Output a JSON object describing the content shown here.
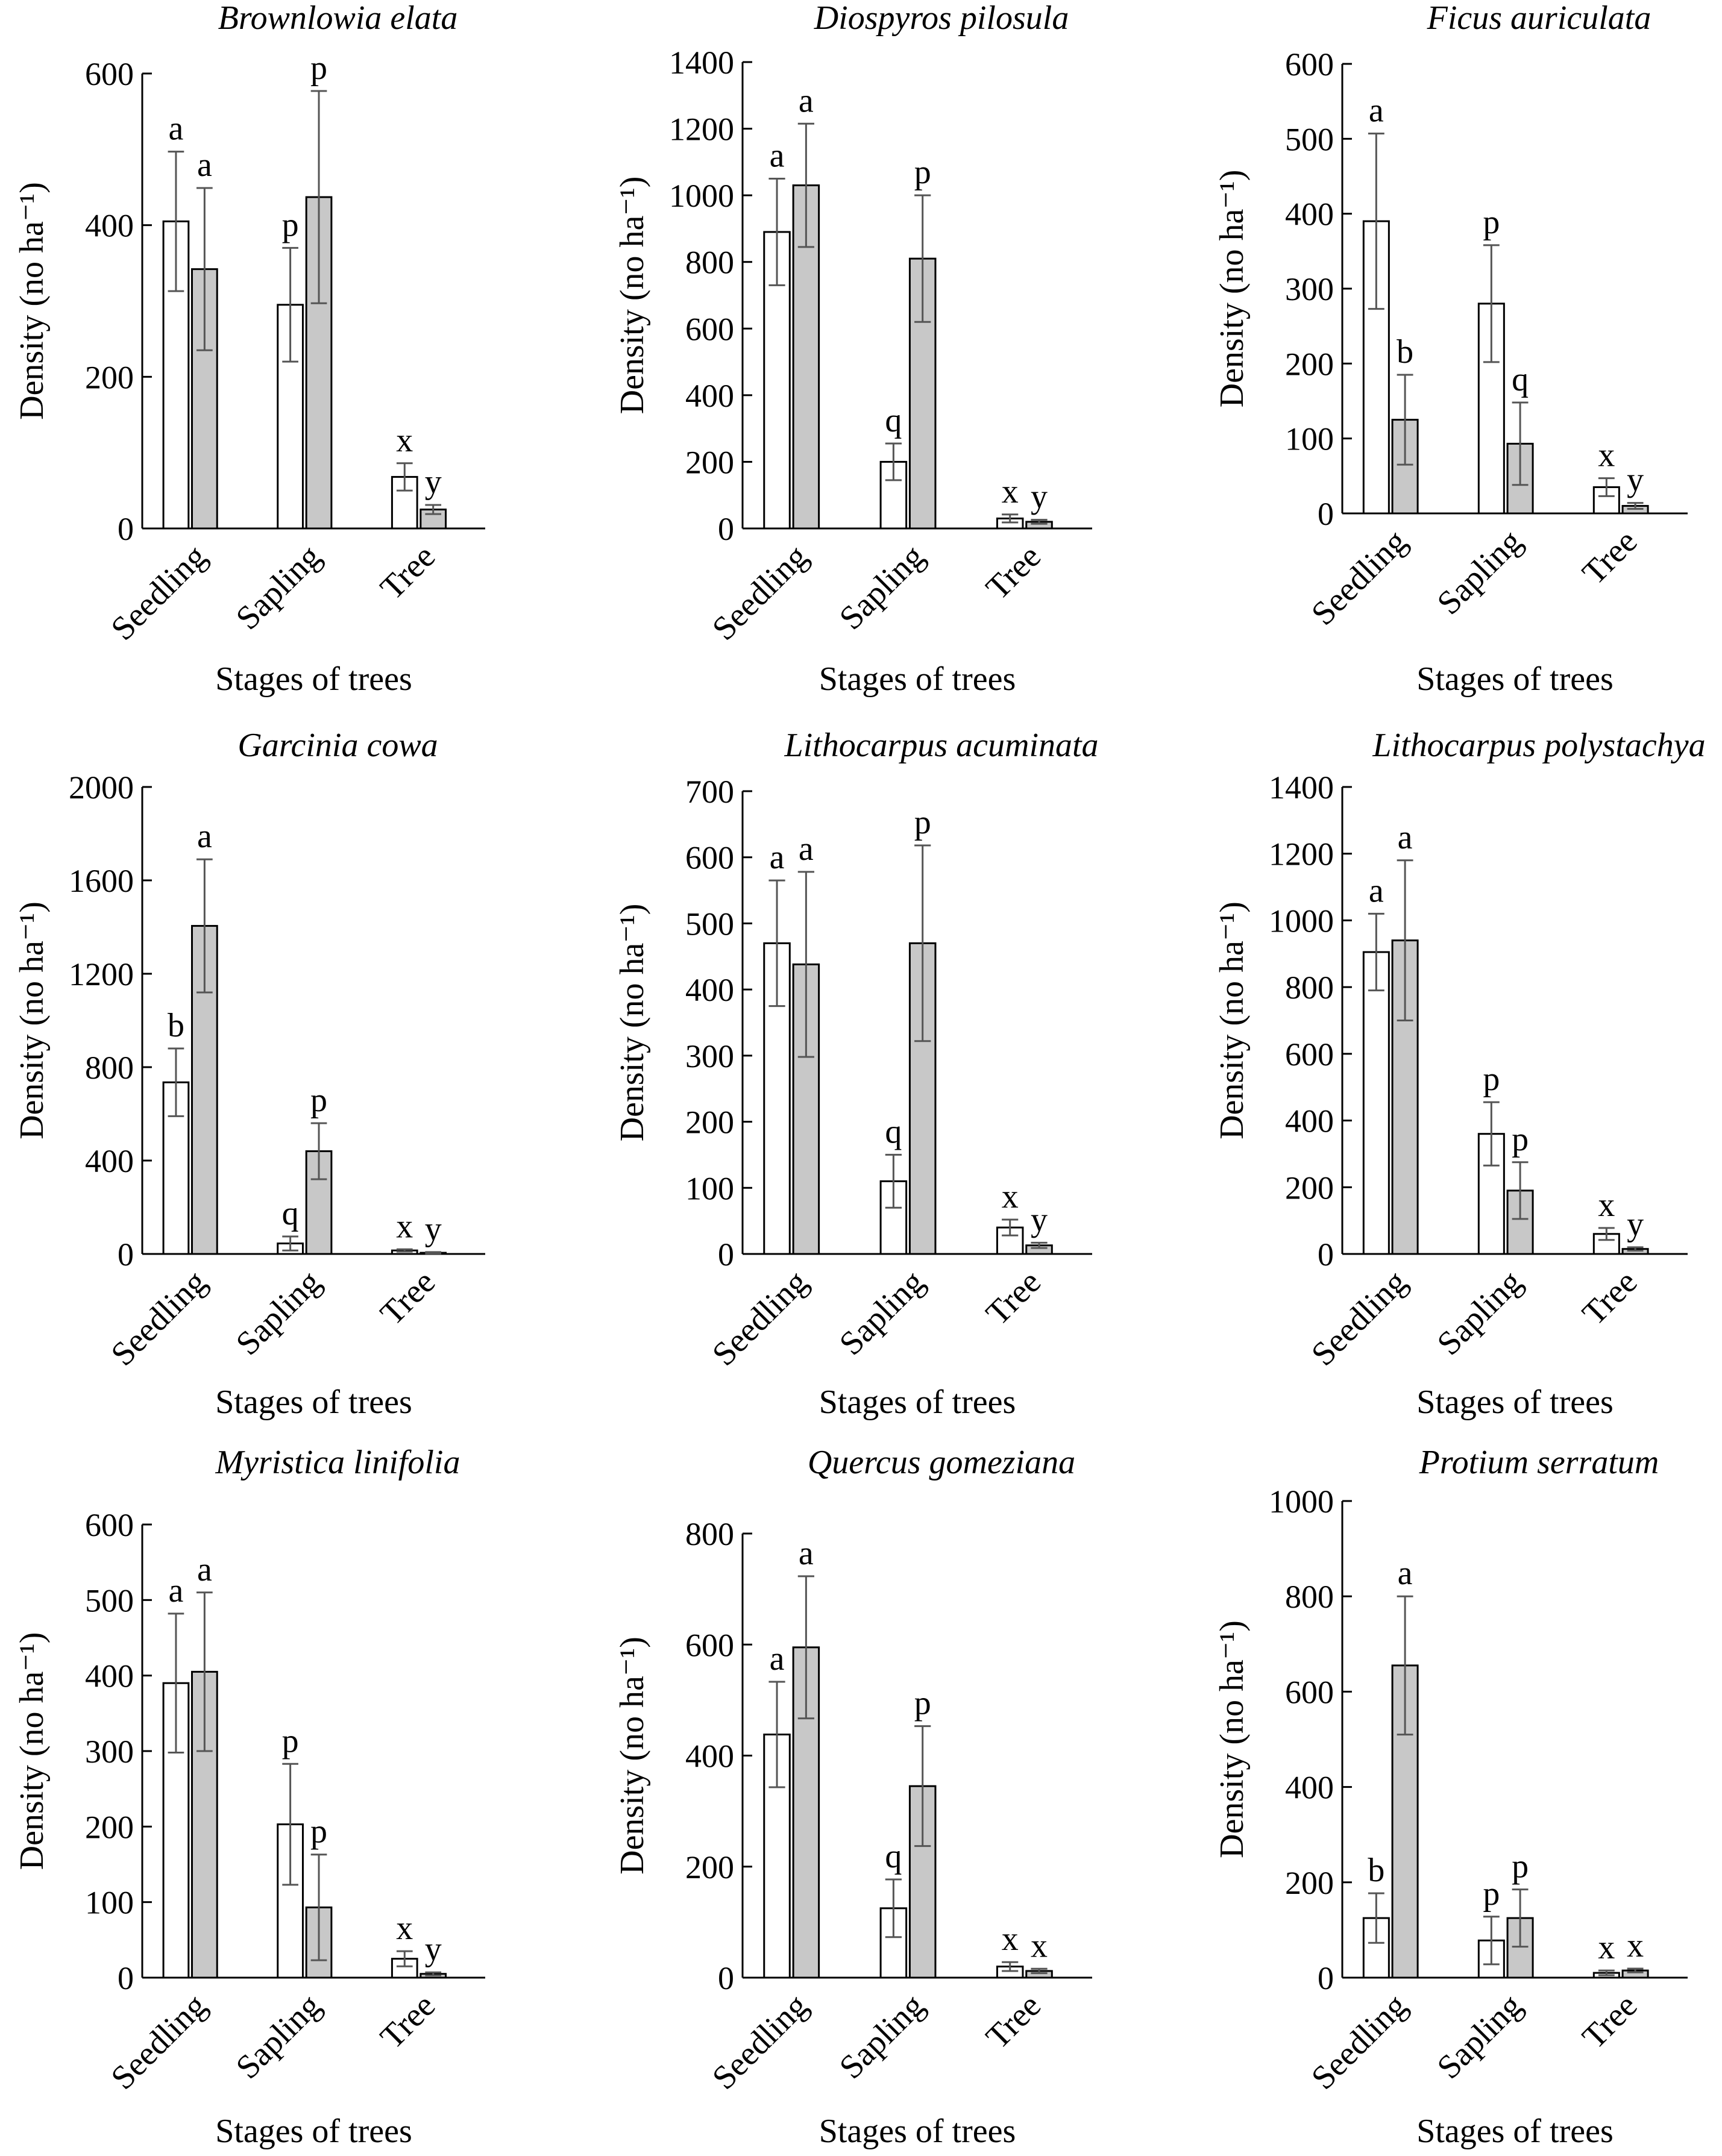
{
  "chart_data": [
    {
      "type": "bar",
      "title": "Brownlowia elata",
      "xlabel": "Stages of trees",
      "ylabel": "Density (no ha⁻¹)",
      "categories": [
        "Seedling",
        "Sapling",
        "Tree"
      ],
      "ylim": [
        0,
        600
      ],
      "yticks": [
        0,
        200,
        400,
        600
      ],
      "series": [
        {
          "fill": "#ffffff",
          "values": [
            405,
            295,
            68
          ],
          "errors": [
            92,
            75,
            18
          ],
          "letters": [
            "a",
            "p",
            "x"
          ]
        },
        {
          "fill": "#c8c8c8",
          "values": [
            342,
            437,
            25
          ],
          "errors": [
            107,
            140,
            6
          ],
          "letters": [
            "a",
            "p",
            "y"
          ]
        }
      ]
    },
    {
      "type": "bar",
      "title": "Diospyros pilosula",
      "xlabel": "Stages of trees",
      "ylabel": "Density (no ha⁻¹)",
      "categories": [
        "Seedling",
        "Sapling",
        "Tree"
      ],
      "ylim": [
        0,
        1400
      ],
      "yticks": [
        0,
        200,
        400,
        600,
        800,
        1000,
        1200,
        1400
      ],
      "series": [
        {
          "fill": "#ffffff",
          "values": [
            890,
            200,
            30
          ],
          "errors": [
            160,
            55,
            12
          ],
          "letters": [
            "a",
            "q",
            "x"
          ]
        },
        {
          "fill": "#c8c8c8",
          "values": [
            1030,
            810,
            20
          ],
          "errors": [
            185,
            190,
            6
          ],
          "letters": [
            "a",
            "p",
            "y"
          ]
        }
      ]
    },
    {
      "type": "bar",
      "title": "Ficus auriculata",
      "xlabel": "Stages of trees",
      "ylabel": "Density (no ha⁻¹)",
      "categories": [
        "Seedling",
        "Sapling",
        "Tree"
      ],
      "ylim": [
        0,
        600
      ],
      "yticks": [
        0,
        100,
        200,
        300,
        400,
        500,
        600
      ],
      "series": [
        {
          "fill": "#ffffff",
          "values": [
            390,
            280,
            35
          ],
          "errors": [
            117,
            78,
            12
          ],
          "letters": [
            "a",
            "p",
            "x"
          ]
        },
        {
          "fill": "#c8c8c8",
          "values": [
            125,
            93,
            10
          ],
          "errors": [
            60,
            55,
            4
          ],
          "letters": [
            "b",
            "q",
            "y"
          ]
        }
      ]
    },
    {
      "type": "bar",
      "title": "Garcinia cowa",
      "xlabel": "Stages of trees",
      "ylabel": "Density (no ha⁻¹)",
      "categories": [
        "Seedling",
        "Sapling",
        "Tree"
      ],
      "ylim": [
        0,
        2000
      ],
      "yticks": [
        0,
        400,
        800,
        1200,
        1600,
        2000
      ],
      "series": [
        {
          "fill": "#ffffff",
          "values": [
            735,
            45,
            15
          ],
          "errors": [
            145,
            30,
            5
          ],
          "letters": [
            "b",
            "q",
            "x"
          ]
        },
        {
          "fill": "#c8c8c8",
          "values": [
            1405,
            440,
            5
          ],
          "errors": [
            285,
            120,
            3
          ],
          "letters": [
            "a",
            "p",
            "y"
          ]
        }
      ]
    },
    {
      "type": "bar",
      "title": "Lithocarpus acuminata",
      "xlabel": "Stages of trees",
      "ylabel": "Density (no ha⁻¹)",
      "categories": [
        "Seedling",
        "Sapling",
        "Tree"
      ],
      "ylim": [
        0,
        700
      ],
      "yticks": [
        0,
        100,
        200,
        300,
        400,
        500,
        600,
        700
      ],
      "series": [
        {
          "fill": "#ffffff",
          "values": [
            470,
            110,
            40
          ],
          "errors": [
            95,
            40,
            12
          ],
          "letters": [
            "a",
            "q",
            "x"
          ]
        },
        {
          "fill": "#c8c8c8",
          "values": [
            438,
            470,
            13
          ],
          "errors": [
            140,
            148,
            4
          ],
          "letters": [
            "a",
            "p",
            "y"
          ]
        }
      ]
    },
    {
      "type": "bar",
      "title": "Lithocarpus polystachya",
      "xlabel": "Stages of trees",
      "ylabel": "Density (no ha⁻¹)",
      "categories": [
        "Seedling",
        "Sapling",
        "Tree"
      ],
      "ylim": [
        0,
        1400
      ],
      "yticks": [
        0,
        200,
        400,
        600,
        800,
        1000,
        1200,
        1400
      ],
      "series": [
        {
          "fill": "#ffffff",
          "values": [
            905,
            360,
            60
          ],
          "errors": [
            115,
            95,
            18
          ],
          "letters": [
            "a",
            "p",
            "x"
          ]
        },
        {
          "fill": "#c8c8c8",
          "values": [
            940,
            190,
            15
          ],
          "errors": [
            240,
            85,
            5
          ],
          "letters": [
            "a",
            "p",
            "y"
          ]
        }
      ]
    },
    {
      "type": "bar",
      "title": "Myristica linifolia",
      "xlabel": "Stages of trees",
      "ylabel": "Density (no ha⁻¹)",
      "categories": [
        "Seedling",
        "Sapling",
        "Tree"
      ],
      "ylim": [
        0,
        600
      ],
      "yticks": [
        0,
        100,
        200,
        300,
        400,
        500,
        600
      ],
      "series": [
        {
          "fill": "#ffffff",
          "values": [
            390,
            203,
            25
          ],
          "errors": [
            92,
            80,
            10
          ],
          "letters": [
            "a",
            "p",
            "x"
          ]
        },
        {
          "fill": "#c8c8c8",
          "values": [
            405,
            93,
            5
          ],
          "errors": [
            105,
            70,
            2
          ],
          "letters": [
            "a",
            "p",
            "y"
          ]
        }
      ]
    },
    {
      "type": "bar",
      "title": "Quercus gomeziana",
      "xlabel": "Stages of trees",
      "ylabel": "Density (no ha⁻¹)",
      "categories": [
        "Seedling",
        "Sapling",
        "Tree"
      ],
      "ylim": [
        0,
        800
      ],
      "yticks": [
        0,
        200,
        400,
        600,
        800
      ],
      "series": [
        {
          "fill": "#ffffff",
          "values": [
            438,
            125,
            20
          ],
          "errors": [
            95,
            52,
            8
          ],
          "letters": [
            "a",
            "q",
            "x"
          ]
        },
        {
          "fill": "#c8c8c8",
          "values": [
            595,
            345,
            12
          ],
          "errors": [
            128,
            108,
            4
          ],
          "letters": [
            "a",
            "p",
            "x"
          ]
        }
      ]
    },
    {
      "type": "bar",
      "title": "Protium serratum",
      "xlabel": "Stages of trees",
      "ylabel": "Density (no ha⁻¹)",
      "categories": [
        "Seedling",
        "Sapling",
        "Tree"
      ],
      "ylim": [
        0,
        1000
      ],
      "yticks": [
        0,
        200,
        400,
        600,
        800,
        1000
      ],
      "series": [
        {
          "fill": "#ffffff",
          "values": [
            125,
            78,
            10
          ],
          "errors": [
            52,
            50,
            5
          ],
          "letters": [
            "b",
            "p",
            "x"
          ]
        },
        {
          "fill": "#c8c8c8",
          "values": [
            655,
            125,
            15
          ],
          "errors": [
            145,
            60,
            4
          ],
          "letters": [
            "a",
            "p",
            "x"
          ]
        }
      ]
    }
  ]
}
